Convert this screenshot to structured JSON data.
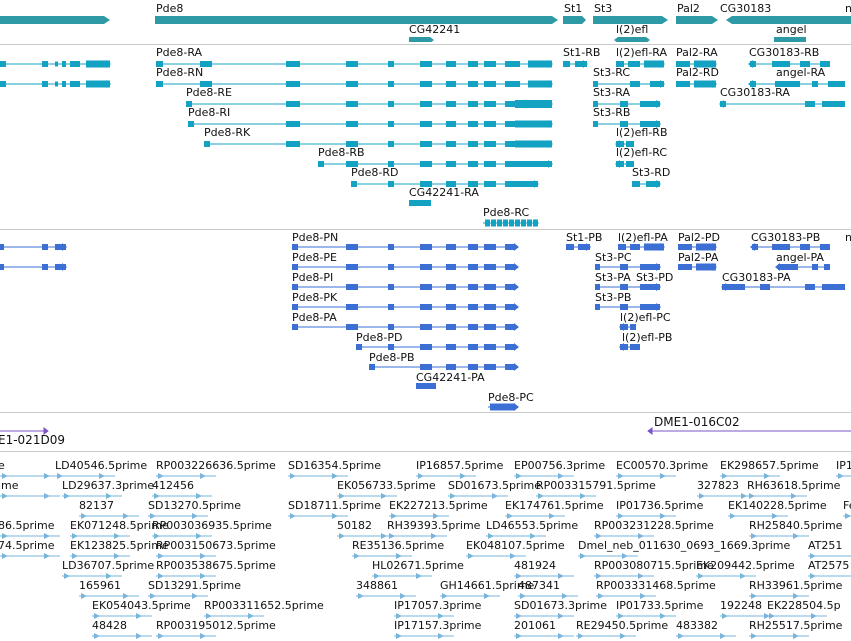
{
  "colors": {
    "gene": "#2e9aa6",
    "transcript_cd": "#13a2c2",
    "transcript_ce": "#3b6fd4",
    "clone": "#7b55c9",
    "est": "#79b4db"
  },
  "genes_track": {
    "labels": [
      {
        "id": "pde8",
        "text": "Pde8"
      },
      {
        "id": "st1",
        "text": "St1"
      },
      {
        "id": "st3",
        "text": "St3"
      },
      {
        "id": "pal2",
        "text": "Pal2"
      },
      {
        "id": "cg30183",
        "text": "CG30183"
      },
      {
        "id": "n_trunc",
        "text": "n"
      },
      {
        "id": "l2efl",
        "text": "l(2)efl"
      },
      {
        "id": "cg42241",
        "text": "CG42241"
      },
      {
        "id": "angel",
        "text": "angel"
      }
    ]
  },
  "transcripts_a": {
    "labels": [
      "Pde8-RA",
      "Pde8-RN",
      "Pde8-RE",
      "Pde8-RI",
      "Pde8-RK",
      "Pde8-RB",
      "Pde8-RD",
      "CG42241-RA",
      "Pde8-RC",
      "St1-RB",
      "l(2)efl-RA",
      "Pal2-RA",
      "CG30183-RB",
      "St3-RC",
      "Pal2-RD",
      "angel-RA",
      "St3-RA",
      "CG30183-RA",
      "St3-RB",
      "l(2)efl-RB",
      "l(2)efl-RC",
      "St3-RD"
    ]
  },
  "transcripts_b": {
    "labels": [
      "Pde8-PN",
      "Pde8-PE",
      "Pde8-PI",
      "Pde8-PK",
      "Pde8-PA",
      "Pde8-PD",
      "Pde8-PB",
      "CG42241-PA",
      "Pde8-PC",
      "St1-PB",
      "l(2)efl-PA",
      "Pal2-PD",
      "CG30183-PB",
      "n",
      "St3-PC",
      "Pal2-PA",
      "angel-PA",
      "St3-PA",
      "St3-PD",
      "CG30183-PA",
      "St3-PB",
      "l(2)efl-PC",
      "l(2)efl-PB"
    ]
  },
  "clones": {
    "labels": [
      "E1-021D09",
      "DME1-016C02"
    ]
  },
  "ests": {
    "rows": [
      [
        "e",
        "LD40546.5prime",
        "RP003226636.5prime",
        "SD16354.5prime",
        "IP16857.5prime",
        "EP00756.3prime",
        "EC00570.3prime",
        "EK298657.5prime",
        "IP1"
      ],
      [
        "ime",
        "LD29637.3prime",
        "412456",
        "EK056733.5prime",
        "SD01673.5prime",
        "RP003315791.5prime",
        "327823",
        "RH63618.5prime"
      ],
      [
        "82137",
        "SD13270.5prime",
        "SD18711.5prime",
        "EK227213.5prime",
        "EK174761.5prime",
        "IP01736.5prime",
        "EK140228.5prime",
        "Fe"
      ],
      [
        "86.5prime",
        "EK071248.5prime",
        "RP003036935.5prime",
        "50182",
        "RH39393.5prime",
        "LD46553.5prime",
        "RP003231228.5prime",
        "RH25840.5prime"
      ],
      [
        "74.5prime",
        "EK123825.5prime",
        "RP003150673.5prime",
        "RE35136.5prime",
        "EK048107.5prime",
        "Dmel_neb_011630_0693_1669.3prime",
        "AT251"
      ],
      [
        "LD36707.5prime",
        "RP003538675.5prime",
        "HL02671.5prime",
        "481924",
        "RP003080715.5prime",
        "EK209442.5prime",
        "AT2575"
      ],
      [
        "165961",
        "SD13291.5prime",
        "348861",
        "GH14661.5prime",
        "487341",
        "RP003331468.5prime",
        "RH33961.5prime"
      ],
      [
        "EK054043.5prime",
        "RP003311652.5prime",
        "IP17057.3prime",
        "SD01673.3prime",
        "IP01733.5prime",
        "192248",
        "EK228504.5p"
      ],
      [
        "48428",
        "RP003195012.5prime",
        "IP17157.3prime",
        "201061",
        "RE29450.5prime",
        "483382",
        "RH25517.5prime"
      ]
    ]
  }
}
